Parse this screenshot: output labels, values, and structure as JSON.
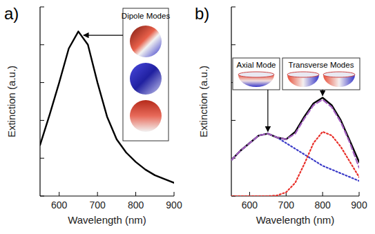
{
  "chart_data": [
    {
      "type": "line",
      "title": "a)",
      "x_label": "Wavelength (nm)",
      "y_label": "Extinction (a.u.)",
      "x": [
        550,
        575,
        600,
        625,
        650,
        675,
        700,
        725,
        750,
        775,
        800,
        825,
        850,
        875,
        900
      ],
      "series": [
        {
          "color": "#000000",
          "line_style": "solid",
          "values": [
            0.27,
            0.43,
            0.6,
            0.78,
            0.87,
            0.8,
            0.6,
            0.42,
            0.3,
            0.23,
            0.18,
            0.14,
            0.11,
            0.09,
            0.07
          ]
        }
      ],
      "xlim": [
        550,
        900
      ],
      "xticks": [
        600,
        700,
        800,
        900
      ],
      "ylim": [
        0,
        1
      ],
      "yticks": [
        0,
        0.2,
        0.4,
        0.6,
        0.8,
        1
      ],
      "tick_labels": "x",
      "annotations": [
        {
          "text": "Dipole Modes",
          "x": 660,
          "y": 0.85
        }
      ]
    },
    {
      "type": "line",
      "title": "b)",
      "x_label": "Wavelength (nm)",
      "y_label": "Extinction (a.u.)",
      "x": [
        550,
        575,
        600,
        625,
        650,
        675,
        700,
        725,
        750,
        775,
        800,
        825,
        850,
        875,
        900
      ],
      "series": [
        {
          "color": "#3a3ac8",
          "line_style": "dotted",
          "values": [
            0.19,
            0.24,
            0.28,
            0.32,
            0.33,
            0.31,
            0.28,
            0.25,
            0.22,
            0.19,
            0.16,
            0.14,
            0.12,
            0.1,
            0.08
          ]
        },
        {
          "color": "#e8302a",
          "line_style": "dotted",
          "values": [
            0,
            0,
            0,
            0,
            0,
            0.003,
            0.02,
            0.07,
            0.17,
            0.28,
            0.34,
            0.32,
            0.26,
            0.18,
            0.1
          ]
        },
        {
          "color": "#000000",
          "line_style": "solid",
          "values": [
            0.19,
            0.24,
            0.28,
            0.32,
            0.33,
            0.31,
            0.3,
            0.34,
            0.42,
            0.49,
            0.52,
            0.48,
            0.4,
            0.29,
            0.18
          ]
        },
        {
          "color": "#a35fc0",
          "line_style": "dashed",
          "values": [
            0.19,
            0.24,
            0.28,
            0.32,
            0.33,
            0.31,
            0.3,
            0.33,
            0.41,
            0.48,
            0.51,
            0.47,
            0.39,
            0.28,
            0.15
          ]
        }
      ],
      "xlim": [
        550,
        900
      ],
      "xticks": [
        600,
        700,
        800,
        900
      ],
      "ylim": [
        0,
        1
      ],
      "yticks": [
        0,
        0.2,
        0.4,
        0.6,
        0.8,
        1
      ],
      "tick_labels": "x",
      "annotations": [
        {
          "text": "Axial Mode",
          "x": 650,
          "y": 0.33
        },
        {
          "text": "Transverse Modes",
          "x": 800,
          "y": 0.52
        }
      ]
    }
  ]
}
